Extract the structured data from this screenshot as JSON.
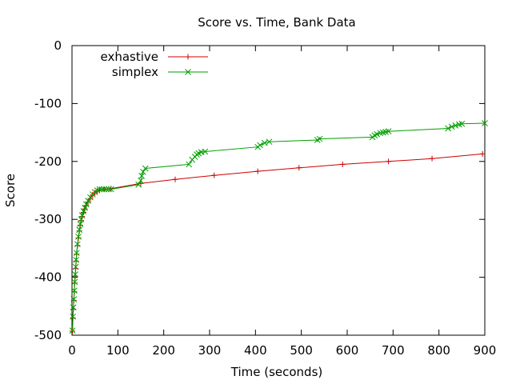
{
  "chart_data": {
    "type": "line",
    "title": "Score vs. Time, Bank Data",
    "xlabel": "Time (seconds)",
    "ylabel": "Score",
    "xlim": [
      0,
      900
    ],
    "ylim": [
      -500,
      0
    ],
    "x_ticks": [
      "0",
      "100",
      "200",
      "300",
      "400",
      "500",
      "600",
      "700",
      "800",
      "900"
    ],
    "y_ticks": [
      "0",
      "-100",
      "-200",
      "-300",
      "-400",
      "-500"
    ],
    "grid": false,
    "legend_position": "top-left",
    "series": [
      {
        "name": "exhastive",
        "color": "#cc0000",
        "marker": "plus",
        "points": [
          [
            1,
            -493
          ],
          [
            2,
            -470
          ],
          [
            3,
            -455
          ],
          [
            4,
            -440
          ],
          [
            5,
            -425
          ],
          [
            6,
            -410
          ],
          [
            7,
            -398
          ],
          [
            8,
            -385
          ],
          [
            9,
            -372
          ],
          [
            10,
            -360
          ],
          [
            12,
            -345
          ],
          [
            14,
            -332
          ],
          [
            16,
            -320
          ],
          [
            18,
            -310
          ],
          [
            20,
            -302
          ],
          [
            22,
            -295
          ],
          [
            25,
            -288
          ],
          [
            28,
            -282
          ],
          [
            31,
            -276
          ],
          [
            35,
            -270
          ],
          [
            40,
            -264
          ],
          [
            45,
            -258
          ],
          [
            50,
            -254
          ],
          [
            55,
            -251
          ],
          [
            60,
            -249
          ],
          [
            70,
            -248
          ],
          [
            85,
            -247
          ],
          [
            150,
            -238
          ],
          [
            225,
            -231
          ],
          [
            310,
            -224
          ],
          [
            405,
            -217
          ],
          [
            495,
            -211
          ],
          [
            590,
            -205
          ],
          [
            690,
            -200
          ],
          [
            785,
            -195
          ],
          [
            895,
            -187
          ]
        ]
      },
      {
        "name": "simplex",
        "color": "#00a000",
        "marker": "cross",
        "points": [
          [
            1,
            -492
          ],
          [
            2,
            -468
          ],
          [
            3,
            -452
          ],
          [
            4,
            -438
          ],
          [
            5,
            -423
          ],
          [
            6,
            -408
          ],
          [
            7,
            -395
          ],
          [
            8,
            -382
          ],
          [
            9,
            -370
          ],
          [
            10,
            -358
          ],
          [
            12,
            -343
          ],
          [
            14,
            -330
          ],
          [
            16,
            -318
          ],
          [
            18,
            -308
          ],
          [
            20,
            -300
          ],
          [
            22,
            -293
          ],
          [
            25,
            -286
          ],
          [
            28,
            -280
          ],
          [
            31,
            -274
          ],
          [
            35,
            -268
          ],
          [
            40,
            -262
          ],
          [
            45,
            -257
          ],
          [
            50,
            -253
          ],
          [
            55,
            -250
          ],
          [
            60,
            -248
          ],
          [
            65,
            -248
          ],
          [
            70,
            -248
          ],
          [
            75,
            -248
          ],
          [
            80,
            -248
          ],
          [
            85,
            -248
          ],
          [
            145,
            -240
          ],
          [
            150,
            -233
          ],
          [
            152,
            -225
          ],
          [
            155,
            -218
          ],
          [
            160,
            -212
          ],
          [
            255,
            -205
          ],
          [
            262,
            -197
          ],
          [
            268,
            -192
          ],
          [
            272,
            -188
          ],
          [
            276,
            -186
          ],
          [
            282,
            -184
          ],
          [
            290,
            -183
          ],
          [
            405,
            -175
          ],
          [
            410,
            -172
          ],
          [
            420,
            -168
          ],
          [
            430,
            -166
          ],
          [
            535,
            -163
          ],
          [
            540,
            -161
          ],
          [
            655,
            -158
          ],
          [
            660,
            -155
          ],
          [
            665,
            -153
          ],
          [
            672,
            -151
          ],
          [
            678,
            -150
          ],
          [
            684,
            -149
          ],
          [
            690,
            -148
          ],
          [
            820,
            -143
          ],
          [
            828,
            -140
          ],
          [
            836,
            -138
          ],
          [
            844,
            -136
          ],
          [
            850,
            -135
          ],
          [
            900,
            -134
          ]
        ]
      }
    ]
  }
}
